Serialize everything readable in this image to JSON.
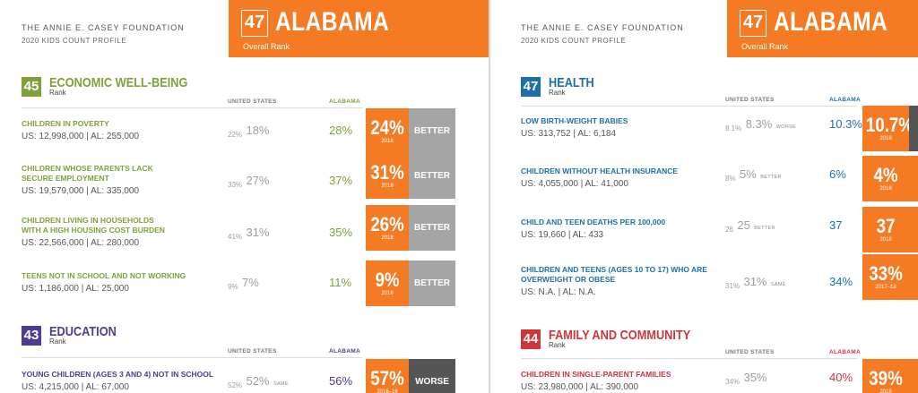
{
  "colors": {
    "orange": "#f47b24",
    "econ": "#7da23b",
    "edu": "#4b3d8f",
    "health": "#1e6fa7",
    "family": "#d0333a",
    "better": "#a5a5a5",
    "worse": "#555555"
  },
  "left": {
    "foundation": "THE ANNIE E. CASEY FOUNDATION",
    "profile": "2020 KIDS COUNT PROFILE",
    "header": {
      "rank": "47",
      "state": "ALABAMA",
      "rank_label": "Overall Rank"
    },
    "econ": {
      "rank": "45",
      "title": "ECONOMIC WELL-BEING",
      "rank_label": "Rank",
      "col_us": "UNITED STATES",
      "col_state": "ALABAMA",
      "rows": [
        {
          "name1": "CHILDREN IN POVERTY",
          "name2": "",
          "counts": "US: 12,998,000 | AL: 255,000",
          "us_old": "22%",
          "us_new": "18%",
          "state_old": "28%",
          "state_new": "24%",
          "status": "BETTER",
          "yr": "2018"
        },
        {
          "name1": "CHILDREN WHOSE PARENTS LACK",
          "name2": "SECURE EMPLOYMENT",
          "counts": "US: 19,579,000 | AL: 335,000",
          "us_old": "33%",
          "us_new": "27%",
          "state_old": "37%",
          "state_new": "31%",
          "status": "BETTER",
          "yr": "2018"
        },
        {
          "name1": "CHILDREN LIVING IN HOUSEHOLDS",
          "name2": "WITH A HIGH HOUSING COST BURDEN",
          "counts": "US: 22,566,000 | AL: 280,000",
          "us_old": "41%",
          "us_new": "31%",
          "state_old": "35%",
          "state_new": "26%",
          "status": "BETTER",
          "yr": "2018"
        },
        {
          "name1": "TEENS NOT IN SCHOOL AND NOT WORKING",
          "name2": "",
          "counts": "US: 1,186,000 | AL: 25,000",
          "us_old": "9%",
          "us_new": "7%",
          "state_old": "11%",
          "state_new": "9%",
          "status": "BETTER",
          "yr": "2018"
        }
      ]
    },
    "edu": {
      "rank": "43",
      "title": "EDUCATION",
      "rank_label": "Rank",
      "col_us": "UNITED STATES",
      "col_state": "ALABAMA",
      "rows": [
        {
          "name1": "YOUNG CHILDREN (AGES 3 AND 4) NOT IN SCHOOL",
          "name2": "",
          "counts": "US: 4,215,000 | AL: 67,000",
          "us_old": "52%",
          "us_new": "52%",
          "state_old": "56%",
          "state_new": "57%",
          "status": "WORSE",
          "yr": "2016–18",
          "us_tag": "SAME"
        }
      ]
    }
  },
  "right": {
    "foundation": "THE ANNIE E. CASEY FOUNDATION",
    "profile": "2020 KIDS COUNT PROFILE",
    "header": {
      "rank": "47",
      "state": "ALABAMA",
      "rank_label": "Overall Rank"
    },
    "health": {
      "rank": "47",
      "title": "HEALTH",
      "rank_label": "Rank",
      "col_us": "UNITED STATES",
      "col_state": "ALABAMA",
      "rows": [
        {
          "name1": "LOW BIRTH-WEIGHT BABIES",
          "name2": "",
          "counts": "US: 313,752 | AL: 6,184",
          "us_old": "8.1%",
          "us_new": "8.3%",
          "us_tag": "WORSE",
          "state_old": "10.3%",
          "state_new": "10.7%",
          "yr": "2018"
        },
        {
          "name1": "CHILDREN WITHOUT HEALTH INSURANCE",
          "name2": "",
          "counts": "US: 4,055,000 | AL: 41,000",
          "us_old": "8%",
          "us_new": "5%",
          "us_tag": "BETTER",
          "state_old": "6%",
          "state_new": "4%",
          "yr": "2018"
        },
        {
          "name1": "CHILD AND TEEN DEATHS PER 100,000",
          "name2": "",
          "counts": "US: 19,660 | AL: 433",
          "us_old": "26",
          "us_new": "25",
          "us_tag": "BETTER",
          "state_old": "37",
          "state_new": "37",
          "yr": "2018"
        },
        {
          "name1": "CHILDREN AND TEENS (AGES 10 TO 17) WHO ARE",
          "name2": "OVERWEIGHT OR OBESE",
          "counts": "US: N.A. | AL: N.A.",
          "us_old": "31%",
          "us_new": "31%",
          "us_tag": "SAME",
          "state_old": "34%",
          "state_new": "33%",
          "yr": "2017–18"
        }
      ]
    },
    "family": {
      "rank": "44",
      "title": "FAMILY AND COMMUNITY",
      "rank_label": "Rank",
      "col_us": "UNITED STATES",
      "col_state": "ALABAMA",
      "rows": [
        {
          "name1": "CHILDREN IN SINGLE-PARENT FAMILIES",
          "name2": "",
          "counts": "US: 23,980,000 | AL: 390,000",
          "us_old": "34%",
          "us_new": "35%",
          "state_old": "40%",
          "state_new": "39%",
          "yr": "2018"
        }
      ]
    }
  }
}
